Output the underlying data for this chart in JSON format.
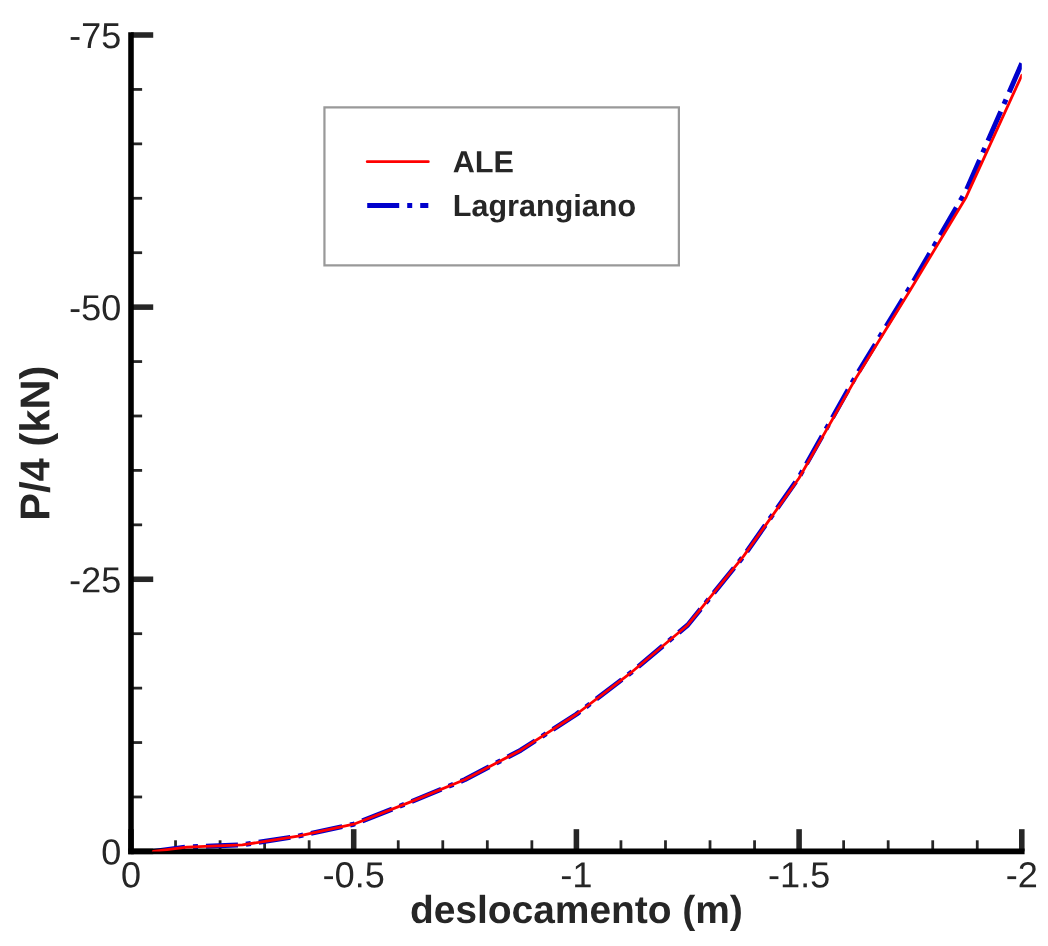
{
  "chart_data": {
    "type": "line",
    "xlabel": "deslocamento (m)",
    "ylabel": "P/4 (kN)",
    "x": [
      -0.05,
      -0.125,
      -0.25,
      -0.375,
      -0.5,
      -0.625,
      -0.75,
      -0.875,
      -1,
      -1.125,
      -1.25,
      -1.375,
      -1.5,
      -1.625,
      -1.75,
      -1.875,
      -2
    ],
    "series": [
      {
        "name": "ALE",
        "color": "#ff0000",
        "line_style": "solid",
        "values": [
          0,
          -0.4,
          -0.6,
          -1.4,
          -2.5,
          -4.5,
          -6.6,
          -9.3,
          -12.6,
          -16.5,
          -20.8,
          -27.1,
          -34.3,
          -43.3,
          -51.6,
          -60.1,
          -71.3
        ]
      },
      {
        "name": "Lagrangiano",
        "color": "#0000cc",
        "line_style": "dashdot",
        "values": [
          0,
          -0.4,
          -0.6,
          -1.4,
          -2.5,
          -4.5,
          -6.6,
          -9.3,
          -12.6,
          -16.5,
          -20.8,
          -27.1,
          -34.4,
          -43.5,
          -51.9,
          -60.7,
          -72.4
        ]
      }
    ],
    "xlim": [
      0,
      -2
    ],
    "xticks": [
      0,
      -0.5,
      -1,
      -1.5,
      -2
    ],
    "ylim": [
      0,
      -75
    ],
    "yticks": [
      0,
      -25,
      -50,
      -75
    ],
    "grid": false,
    "legend": "top left"
  }
}
